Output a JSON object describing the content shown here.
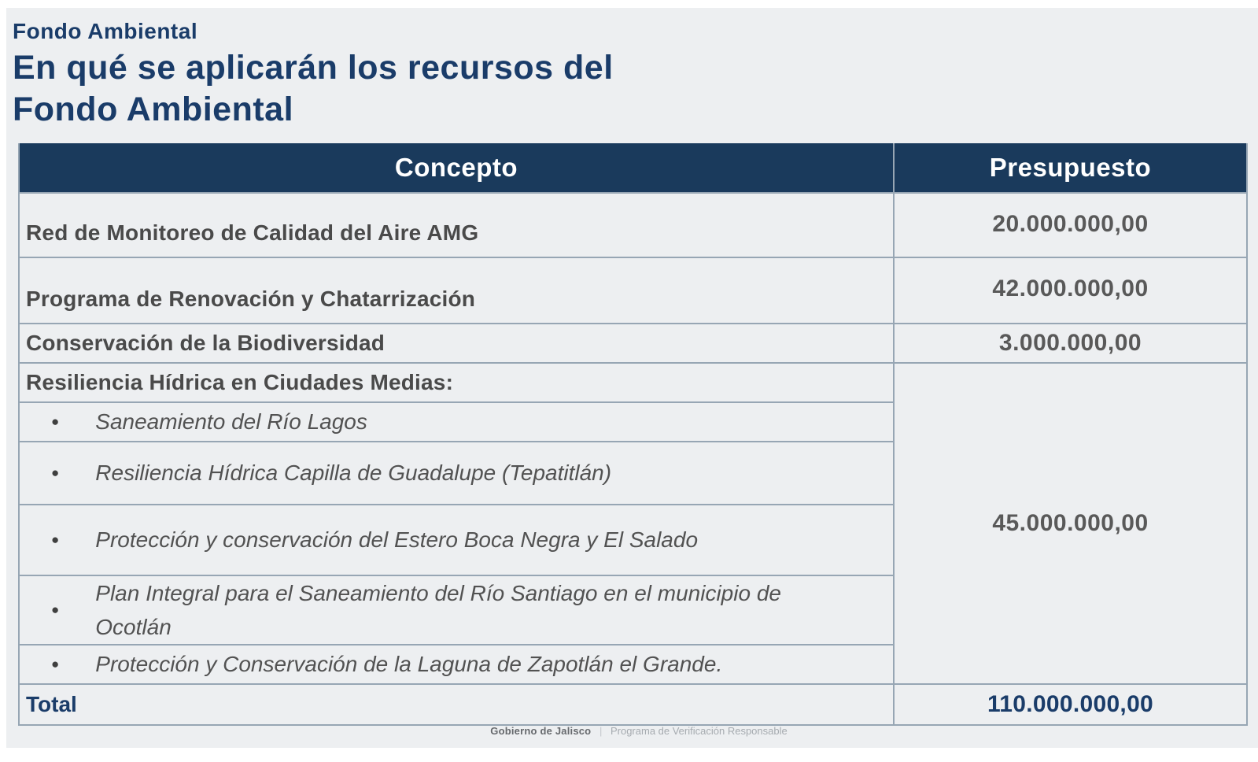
{
  "header": {
    "eyebrow": "Fondo Ambiental",
    "title_line1": "En qué se aplicarán los recursos del",
    "title_line2": "Fondo Ambiental"
  },
  "table": {
    "columns": {
      "concept": "Concepto",
      "budget": "Presupuesto"
    },
    "rows": [
      {
        "concept": "Red de Monitoreo de Calidad del Aire AMG",
        "budget": "20.000.000,00"
      },
      {
        "concept": "Programa de Renovación y Chatarrización",
        "budget": "42.000.000,00"
      },
      {
        "concept": "Conservación de la Biodiversidad",
        "budget": "3.000.000,00"
      },
      {
        "concept": "Resiliencia Hídrica en Ciudades Medias:",
        "budget": "45.000.000,00"
      }
    ],
    "sub_items": [
      "Saneamiento del Río Lagos",
      "Resiliencia Hídrica Capilla de Guadalupe (Tepatitlán)",
      "Protección y conservación del Estero Boca Negra y El Salado",
      "Plan Integral para el Saneamiento del Río Santiago en el municipio de Ocotlán",
      "Protección y Conservación de la Laguna de Zapotlán el Grande."
    ],
    "bullet_glyph": "●",
    "total": {
      "label": "Total",
      "value": "110.000.000,00"
    }
  },
  "footer": {
    "brand": "Gobierno de Jalisco",
    "separator": "|",
    "program": "Programa de Verificación Responsable"
  },
  "colors": {
    "header_navy": "#1a3a5c",
    "title_navy": "#1a3c69",
    "grid_line": "#97a6b4",
    "slide_bg": "#edeff1",
    "concept_text": "#4a4a4a",
    "value_text": "#595959"
  }
}
